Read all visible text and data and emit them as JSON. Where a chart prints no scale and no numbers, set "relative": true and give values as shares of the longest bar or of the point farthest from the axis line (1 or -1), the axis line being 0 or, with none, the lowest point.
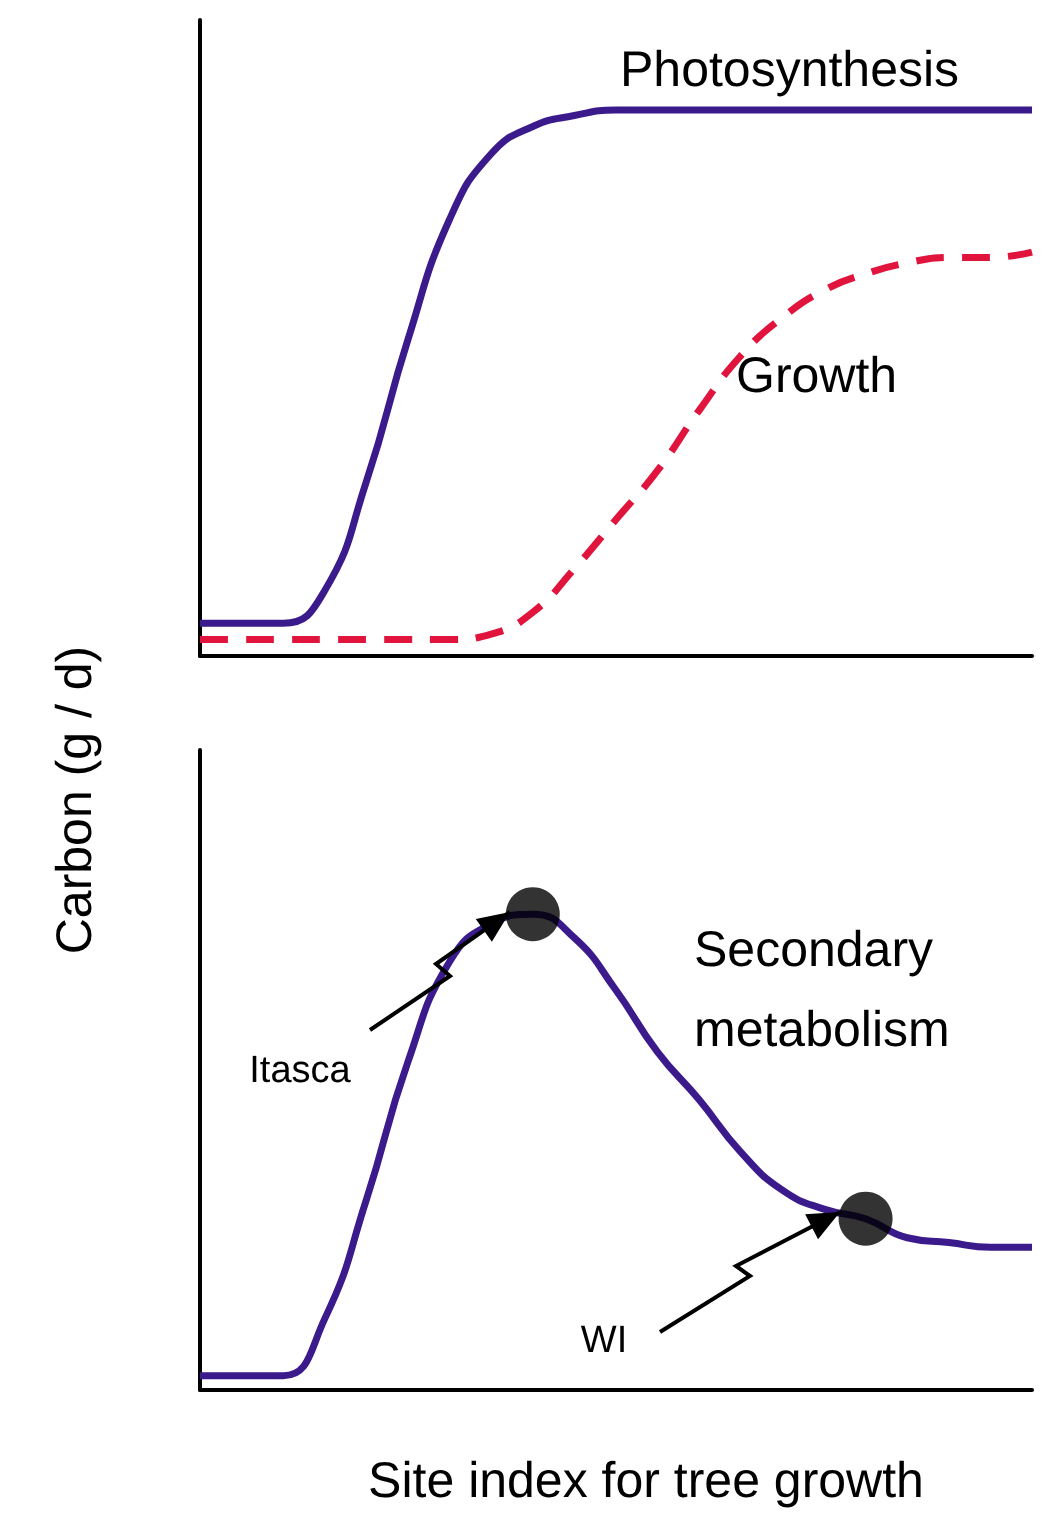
{
  "chart_data": [
    {
      "type": "line",
      "ylabel": "Carbon (g / d)",
      "relative": true,
      "marker": "none",
      "categories": [
        null,
        null,
        null,
        null,
        null,
        null,
        null,
        null,
        null,
        null,
        null,
        null,
        null,
        null,
        null,
        null,
        null,
        null,
        null,
        null,
        null
      ],
      "series": [
        {
          "name": "Photosynthesis",
          "color": "#3b1a8c",
          "line_style": "solid",
          "values": [
            0.06,
            0.06,
            0.06,
            0.12,
            0.32,
            0.58,
            0.8,
            0.92,
            0.97,
            0.99,
            1,
            1,
            1,
            1,
            1,
            1,
            1,
            1,
            1,
            1,
            1
          ]
        },
        {
          "name": "Growth",
          "color": "#e0143c",
          "line_style": "dashed",
          "values": [
            0.03,
            0.03,
            0.03,
            0.03,
            0.03,
            0.03,
            0.03,
            0.04,
            0.08,
            0.16,
            0.25,
            0.34,
            0.45,
            0.55,
            0.62,
            0.67,
            0.7,
            0.72,
            0.73,
            0.73,
            0.74
          ]
        }
      ]
    },
    {
      "type": "line",
      "xlabel": "Site index for tree growth",
      "relative": true,
      "categories": [
        null,
        null,
        null,
        null,
        null,
        null,
        null,
        null,
        null,
        null,
        null,
        null,
        null,
        null,
        null,
        null,
        null,
        null,
        null,
        null,
        null
      ],
      "annotations": [
        "Itasca",
        "WI"
      ],
      "series": [
        {
          "name": "Secondary metabolism",
          "color": "#3b1a8c",
          "line_style": "solid",
          "marker": "none",
          "values": [
            0.03,
            0.03,
            0.03,
            0.15,
            0.4,
            0.69,
            0.9,
            0.98,
            1.0,
            0.95,
            0.84,
            0.71,
            0.61,
            0.5,
            0.42,
            0.38,
            0.36,
            0.32,
            0.31,
            0.3,
            0.3
          ]
        },
        {
          "type": "scatter",
          "color": "#000000",
          "marker": "circle",
          "values": [
            null,
            null,
            null,
            null,
            null,
            null,
            null,
            null,
            1.0,
            null,
            null,
            null,
            null,
            null,
            null,
            null,
            0.36,
            null,
            null,
            null,
            null
          ]
        }
      ]
    }
  ]
}
